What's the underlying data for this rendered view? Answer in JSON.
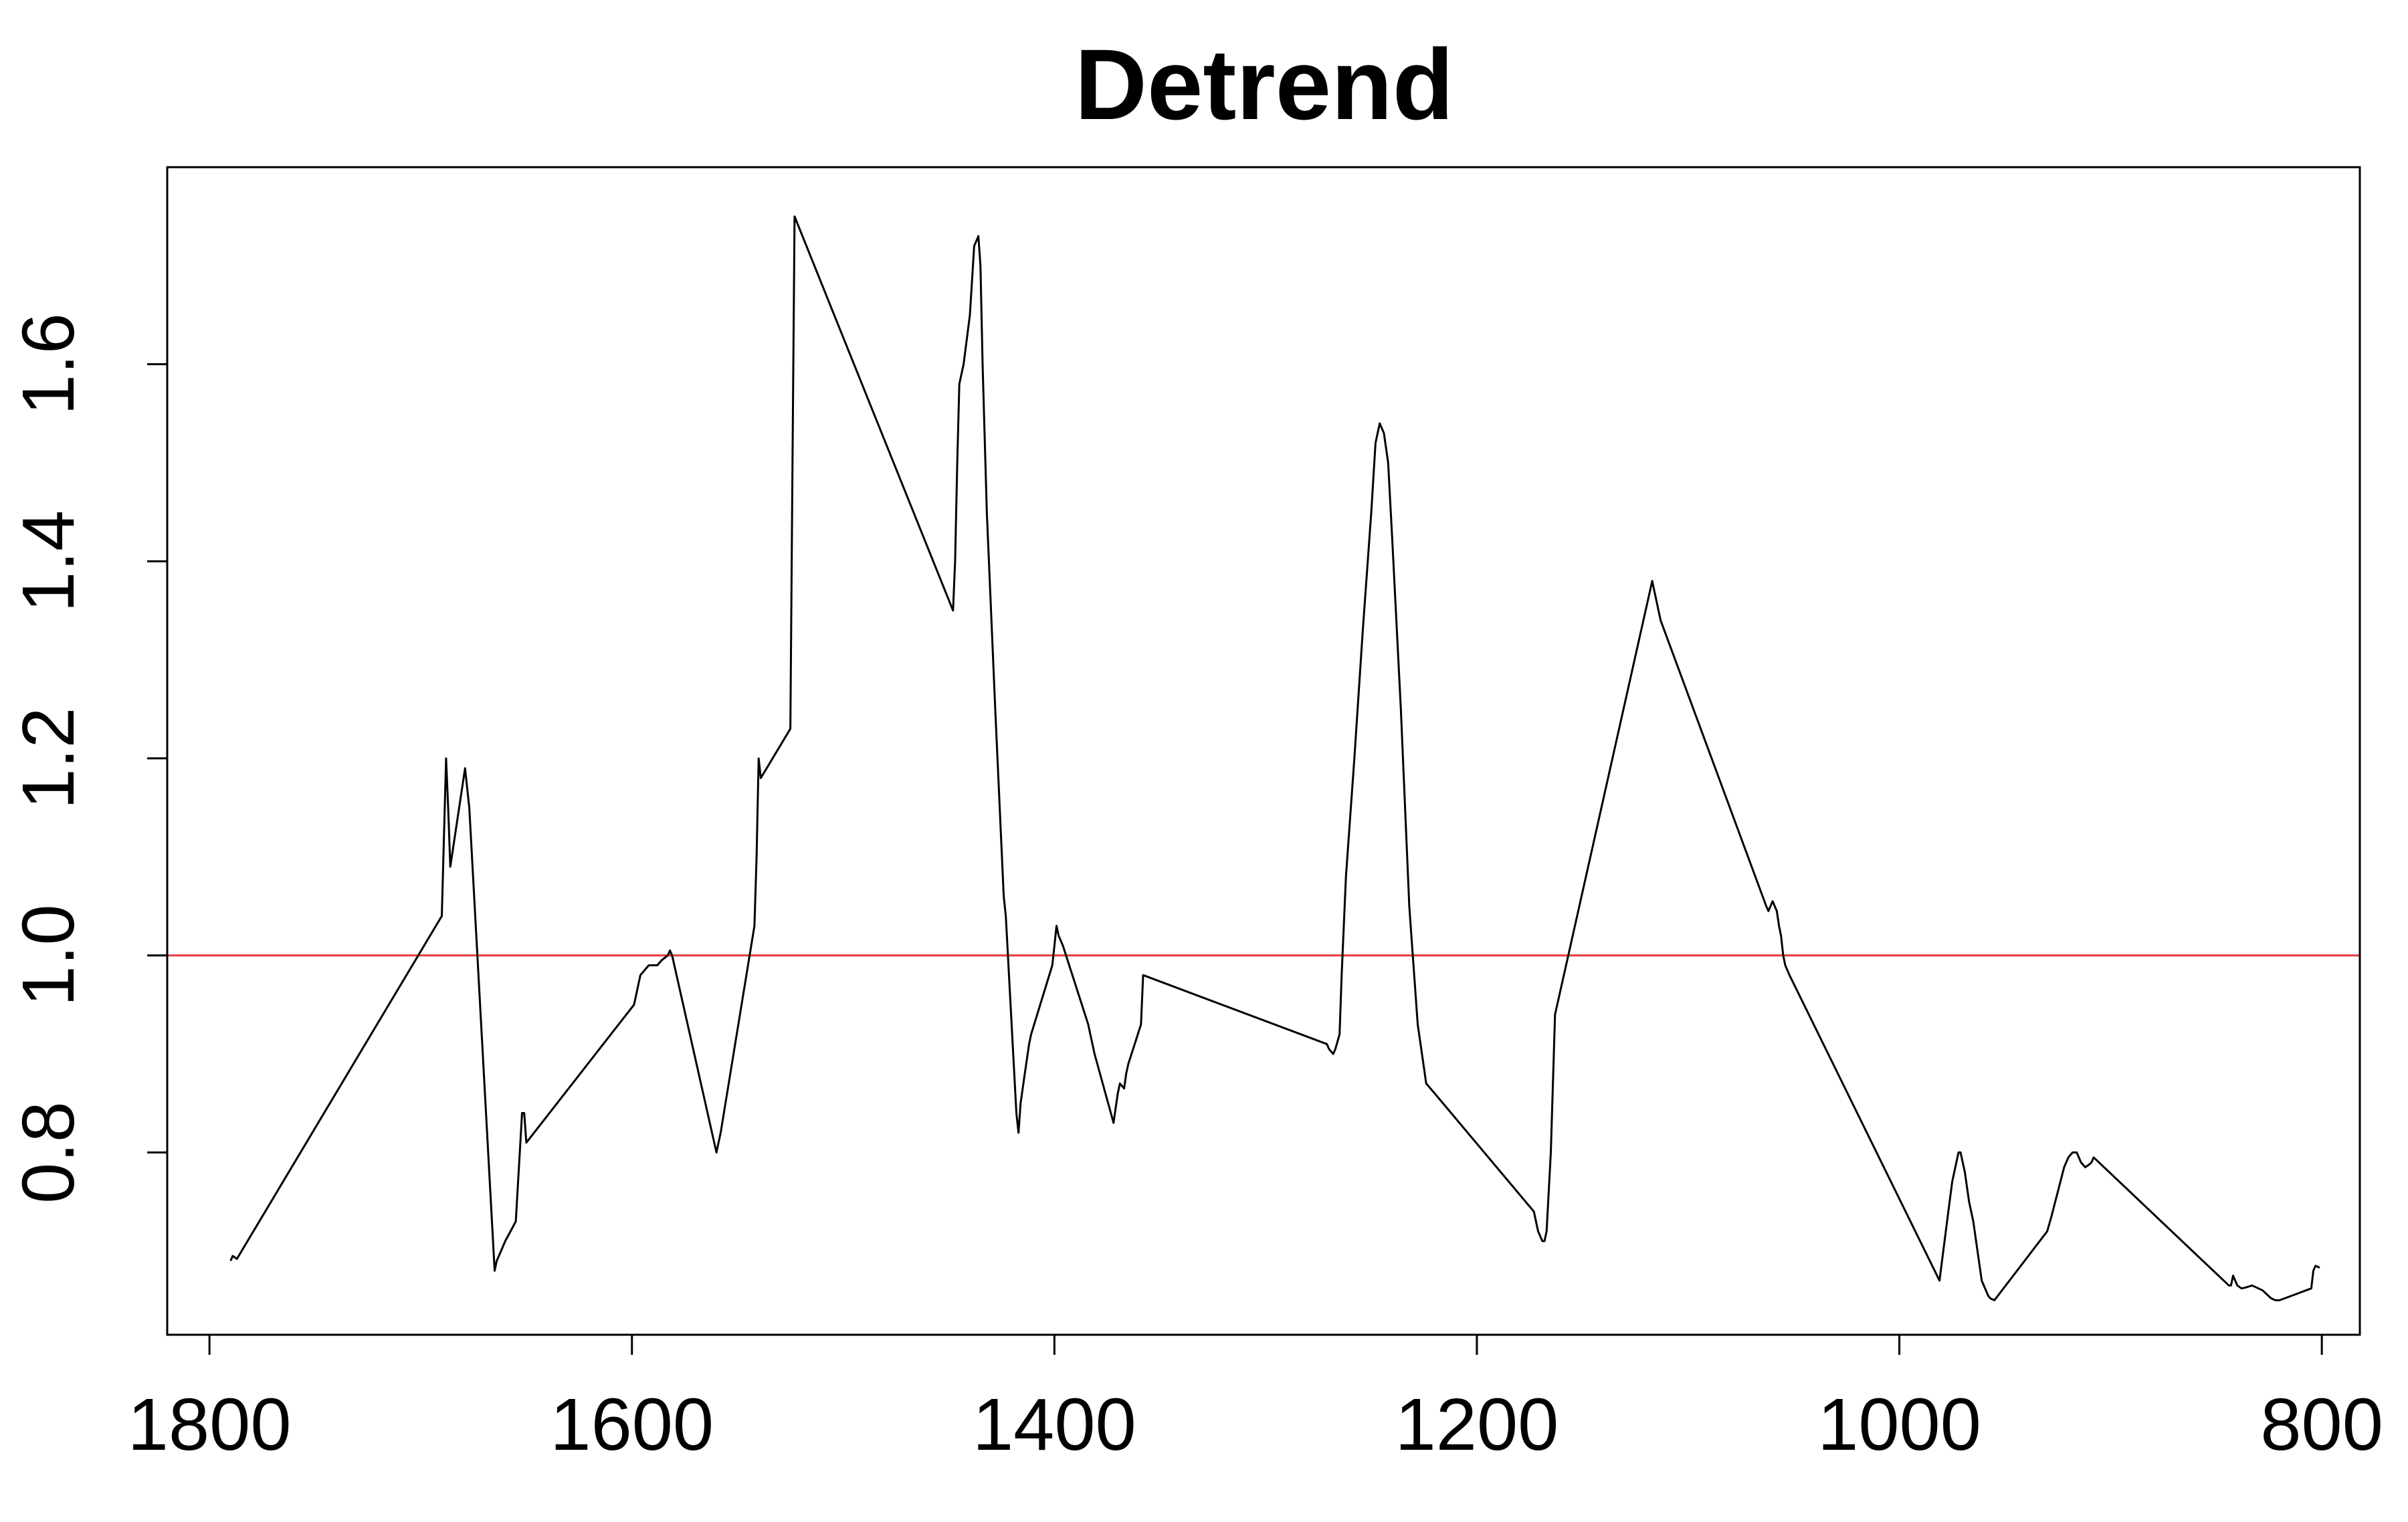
{
  "chart_data": {
    "type": "line",
    "title": "Detrend",
    "xlabel": "",
    "ylabel": "",
    "xlim": [
      1820,
      782
    ],
    "ylim": [
      0.615,
      1.8
    ],
    "x_ticks": [
      1800,
      1600,
      1400,
      1200,
      1000,
      800
    ],
    "y_ticks": [
      0.8,
      1.0,
      1.2,
      1.4,
      1.6
    ],
    "x_tick_labels": [
      "1800",
      "1600",
      "1400",
      "1200",
      "1000",
      "800"
    ],
    "y_tick_labels": [
      "0.8",
      "1.0",
      "1.2",
      "1.4",
      "1.6"
    ],
    "grid": false,
    "legend": "none",
    "reference_line": {
      "y": 1.0,
      "color": "#e8393c"
    },
    "line_color": "#000000",
    "series": [
      {
        "x": [
          1790,
          1789,
          1787,
          1690,
          1689,
          1688,
          1687,
          1686,
          1679,
          1678,
          1677,
          1665,
          1664,
          1662,
          1660,
          1655,
          1652,
          1651,
          1650,
          1599,
          1598,
          1597,
          1596,
          1592,
          1588,
          1586,
          1583,
          1582,
          1581,
          1560,
          1559,
          1558,
          1542,
          1541,
          1540,
          1539,
          1525,
          1524,
          1523,
          1448,
          1447,
          1446,
          1445,
          1443,
          1440,
          1438,
          1436,
          1435,
          1434,
          1432,
          1428,
          1424,
          1423,
          1418,
          1417,
          1416,
          1414,
          1412,
          1411,
          1401,
          1400,
          1399,
          1398,
          1396,
          1384,
          1383,
          1382,
          1381,
          1372,
          1371,
          1370,
          1369,
          1367,
          1366,
          1365,
          1362,
          1359,
          1358,
          1271,
          1270,
          1268,
          1267,
          1265,
          1264,
          1262,
          1258,
          1254,
          1250,
          1248,
          1246,
          1244,
          1242,
          1240,
          1236,
          1232,
          1228,
          1224,
          1220,
          1173,
          1171,
          1169,
          1168,
          1167,
          1165,
          1163,
          1117,
          1116,
          1115,
          1114,
          1113,
          1063,
          1062,
          1061,
          1060,
          1059,
          1058,
          1057,
          1056,
          1055,
          1054,
          1052,
          981,
          978,
          975,
          973,
          972,
          971,
          969,
          967,
          965,
          963,
          961,
          959,
          958,
          957,
          955,
          930,
          928,
          925,
          922,
          920,
          918,
          916,
          914,
          912,
          910,
          909,
          908,
          844,
          843,
          842,
          841,
          840,
          838,
          836,
          833,
          830,
          828,
          826,
          824,
          822,
          820,
          805,
          804,
          803,
          802,
          801
        ],
        "y": [
          0.69,
          0.695,
          0.692,
          1.04,
          1.12,
          1.2,
          1.15,
          1.09,
          1.19,
          1.17,
          1.15,
          0.68,
          0.69,
          0.7,
          0.71,
          0.73,
          0.84,
          0.84,
          0.81,
          0.95,
          0.96,
          0.97,
          0.98,
          0.99,
          0.99,
          0.995,
          1.0,
          1.005,
          1.0,
          0.8,
          0.81,
          0.82,
          1.03,
          1.1,
          1.2,
          1.18,
          1.23,
          1.5,
          1.75,
          1.35,
          1.4,
          1.5,
          1.58,
          1.6,
          1.65,
          1.72,
          1.73,
          1.7,
          1.6,
          1.45,
          1.25,
          1.06,
          1.04,
          0.84,
          0.82,
          0.85,
          0.88,
          0.91,
          0.92,
          0.99,
          1.01,
          1.03,
          1.02,
          1.01,
          0.93,
          0.92,
          0.91,
          0.9,
          0.83,
          0.845,
          0.86,
          0.87,
          0.865,
          0.88,
          0.89,
          0.91,
          0.93,
          0.98,
          0.91,
          0.905,
          0.9,
          0.905,
          0.92,
          0.98,
          1.08,
          1.2,
          1.33,
          1.45,
          1.52,
          1.54,
          1.53,
          1.5,
          1.42,
          1.25,
          1.05,
          0.93,
          0.87,
          0.86,
          0.74,
          0.72,
          0.71,
          0.71,
          0.72,
          0.8,
          0.94,
          1.38,
          1.37,
          1.36,
          1.35,
          1.34,
          1.05,
          1.045,
          1.05,
          1.055,
          1.05,
          1.045,
          1.03,
          1.02,
          1.0,
          0.99,
          0.98,
          0.67,
          0.72,
          0.77,
          0.79,
          0.8,
          0.8,
          0.78,
          0.75,
          0.73,
          0.7,
          0.67,
          0.66,
          0.655,
          0.652,
          0.65,
          0.72,
          0.735,
          0.76,
          0.785,
          0.795,
          0.8,
          0.8,
          0.79,
          0.785,
          0.788,
          0.79,
          0.795,
          0.665,
          0.665,
          0.675,
          0.67,
          0.665,
          0.662,
          0.663,
          0.665,
          0.662,
          0.66,
          0.656,
          0.652,
          0.65,
          0.65,
          0.662,
          0.68,
          0.685,
          0.684,
          0.683
        ]
      }
    ]
  }
}
